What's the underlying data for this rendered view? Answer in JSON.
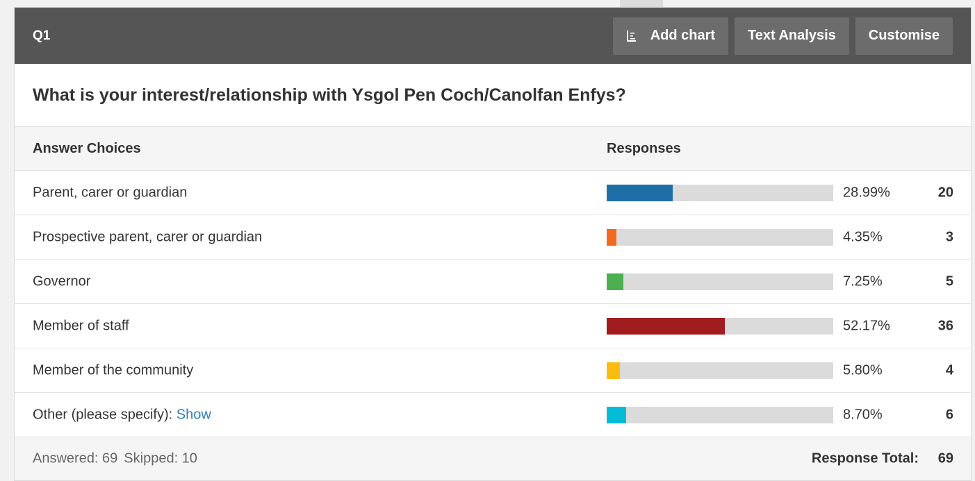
{
  "header": {
    "question_number": "Q1",
    "add_chart_label": "Add chart",
    "text_analysis_label": "Text Analysis",
    "customise_label": "Customise"
  },
  "question": {
    "title": "What is your interest/relationship with Ysgol Pen Coch/Canolfan Enfys?"
  },
  "table": {
    "col_choices": "Answer Choices",
    "col_responses": "Responses",
    "rows": [
      {
        "label": "Parent, carer or guardian",
        "percent": "28.99%",
        "count": "20",
        "fraction": 0.2899,
        "color": "#1f6fa7"
      },
      {
        "label": "Prospective parent, carer or guardian",
        "percent": "4.35%",
        "count": "3",
        "fraction": 0.0435,
        "color": "#f26a22"
      },
      {
        "label": "Governor",
        "percent": "7.25%",
        "count": "5",
        "fraction": 0.0725,
        "color": "#4caf50"
      },
      {
        "label": "Member of staff",
        "percent": "52.17%",
        "count": "36",
        "fraction": 0.5217,
        "color": "#a11c1f"
      },
      {
        "label": "Member of the community",
        "percent": "5.80%",
        "count": "4",
        "fraction": 0.058,
        "color": "#fbbd0d"
      },
      {
        "label": "Other (please specify): ",
        "show_link": "Show",
        "percent": "8.70%",
        "count": "6",
        "fraction": 0.087,
        "color": "#00bcd4"
      }
    ]
  },
  "footer": {
    "answered": "Answered: 69",
    "skipped": "Skipped: 10",
    "total_label": "Response Total:",
    "total_value": "69"
  },
  "icons": {
    "add_chart": "chart-list-icon"
  }
}
